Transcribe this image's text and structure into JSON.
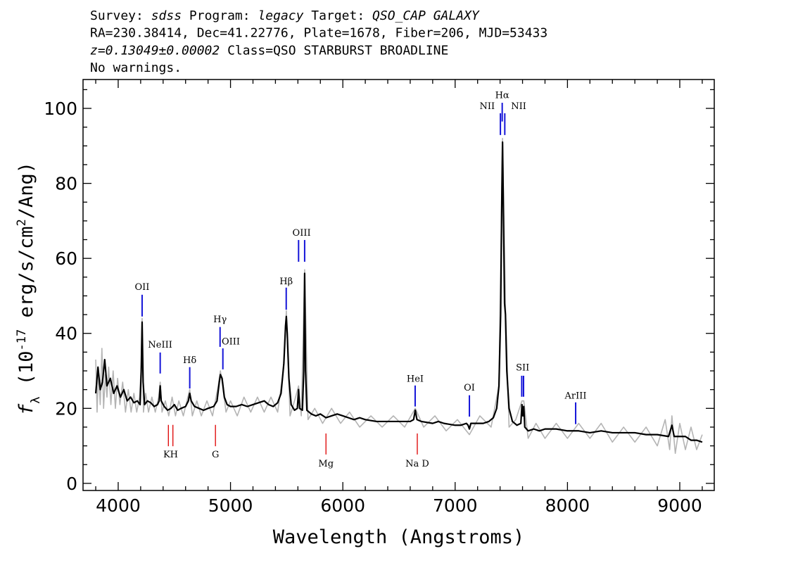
{
  "chart_data": {
    "type": "line",
    "header": [
      [
        {
          "text": "Survey: "
        },
        {
          "text": "sdss",
          "italic": true
        },
        {
          "text": " Program: "
        },
        {
          "text": "legacy",
          "italic": true
        },
        {
          "text": " Target: "
        },
        {
          "text": "QSO_CAP GALAXY",
          "italic": true
        }
      ],
      [
        {
          "text": "RA=230.38414, Dec=41.22776, Plate=1678, Fiber=206, MJD=53433"
        }
      ],
      [
        {
          "text": "z=0.13049±0.00002",
          "italic": true
        },
        {
          "text": " Class=QSO STARBURST BROADLINE"
        }
      ],
      [
        {
          "text": "No warnings."
        }
      ]
    ],
    "xlabel": "Wavelength (Angstroms)",
    "ylabel": [
      {
        "text": "f",
        "italic": true
      },
      {
        "text": "λ",
        "sub": true
      },
      {
        "text": " (10"
      },
      {
        "text": "-17",
        "sup": true
      },
      {
        "text": " erg/s/cm"
      },
      {
        "text": "2",
        "sup": true
      },
      {
        "text": "/Ang)"
      }
    ],
    "xlim": [
      3687,
      9307
    ],
    "ylim": [
      -1.9,
      107.7
    ],
    "xticks": [
      4000,
      5000,
      6000,
      7000,
      8000,
      9000
    ],
    "yticks": [
      0,
      20,
      40,
      60,
      80,
      100
    ],
    "xminorticks": [
      3800,
      4200,
      4400,
      4600,
      4800,
      5200,
      5400,
      5600,
      5800,
      6200,
      6400,
      6600,
      6800,
      7200,
      7400,
      7600,
      7800,
      8200,
      8400,
      8600,
      8800,
      9200
    ],
    "yminorticks": [
      5,
      10,
      15,
      25,
      30,
      35,
      45,
      50,
      55,
      65,
      70,
      75,
      85,
      90,
      95,
      105
    ],
    "series": [
      {
        "color": "#b4b4b4",
        "x": [
          3800,
          3812,
          3825,
          3840,
          3855,
          3870,
          3885,
          3900,
          3915,
          3935,
          3955,
          3975,
          3995,
          4015,
          4040,
          4065,
          4090,
          4115,
          4140,
          4165,
          4190,
          4205,
          4213,
          4225,
          4245,
          4270,
          4300,
          4330,
          4360,
          4374,
          4390,
          4420,
          4450,
          4480,
          4510,
          4540,
          4580,
          4620,
          4637,
          4660,
          4700,
          4740,
          4790,
          4840,
          4890,
          4910,
          4930,
          4960,
          5000,
          5060,
          5120,
          5180,
          5240,
          5300,
          5360,
          5420,
          5470,
          5497,
          5530,
          5570,
          5606,
          5630,
          5660,
          5690,
          5750,
          5820,
          5900,
          5980,
          6060,
          6150,
          6250,
          6350,
          6450,
          6550,
          6645,
          6720,
          6820,
          6920,
          7020,
          7127,
          7220,
          7320,
          7390,
          7422,
          7448,
          7480,
          7540,
          7595,
          7611,
          7650,
          7720,
          7800,
          7900,
          8000,
          8100,
          8200,
          8300,
          8400,
          8500,
          8600,
          8700,
          8800,
          8870,
          8910,
          8930,
          8960,
          9000,
          9050,
          9100,
          9150,
          9200
        ],
        "values": [
          33,
          19,
          30,
          21,
          36,
          20,
          29,
          23,
          31,
          21,
          30,
          20,
          28,
          21,
          27,
          19,
          25,
          19,
          24,
          19,
          23,
          31,
          44,
          19,
          24,
          19,
          23,
          19,
          23,
          27,
          19,
          22,
          18,
          23,
          18,
          22,
          18,
          23,
          25,
          18,
          22,
          18,
          22,
          18,
          26,
          30,
          26,
          19,
          22,
          18,
          23,
          19,
          23,
          19,
          23,
          19,
          30,
          46,
          18,
          22,
          26,
          18,
          57,
          17,
          20,
          16,
          20,
          16,
          19,
          15,
          18,
          15,
          18,
          15,
          20,
          15,
          18,
          14,
          17,
          13,
          18,
          15,
          26,
          92,
          47,
          15,
          17,
          22,
          22,
          12,
          16,
          12,
          16,
          12,
          16,
          12,
          16,
          11,
          15,
          11,
          15,
          10,
          17,
          9,
          18,
          8,
          16,
          9,
          15,
          9,
          13
        ]
      },
      {
        "color": "#000000",
        "x": [
          3800,
          3820,
          3840,
          3860,
          3880,
          3900,
          3930,
          3960,
          3990,
          4020,
          4050,
          4080,
          4110,
          4140,
          4170,
          4195,
          4205,
          4213,
          4222,
          4235,
          4260,
          4290,
          4320,
          4350,
          4365,
          4374,
          4383,
          4410,
          4440,
          4470,
          4500,
          4530,
          4560,
          4600,
          4625,
          4637,
          4650,
          4680,
          4720,
          4760,
          4800,
          4850,
          4880,
          4900,
          4910,
          4925,
          4945,
          4970,
          5000,
          5050,
          5100,
          5150,
          5200,
          5250,
          5300,
          5340,
          5380,
          5420,
          5450,
          5475,
          5490,
          5497,
          5505,
          5520,
          5540,
          5570,
          5595,
          5606,
          5615,
          5640,
          5652,
          5660,
          5668,
          5680,
          5720,
          5760,
          5800,
          5850,
          5900,
          5950,
          6000,
          6050,
          6100,
          6150,
          6200,
          6300,
          6400,
          6500,
          6600,
          6630,
          6645,
          6660,
          6700,
          6800,
          6850,
          6900,
          7000,
          7050,
          7100,
          7115,
          7127,
          7140,
          7200,
          7250,
          7300,
          7340,
          7370,
          7390,
          7405,
          7415,
          7422,
          7430,
          7440,
          7448,
          7460,
          7480,
          7510,
          7550,
          7585,
          7595,
          7603,
          7611,
          7620,
          7650,
          7700,
          7750,
          7800,
          7900,
          8000,
          8100,
          8200,
          8300,
          8400,
          8500,
          8600,
          8700,
          8800,
          8900,
          8930,
          8950,
          9000,
          9050,
          9100,
          9150,
          9200
        ],
        "values": [
          24,
          31,
          25,
          27,
          33,
          26,
          28,
          24,
          26,
          23,
          25,
          22,
          23,
          21.5,
          22,
          21,
          30,
          43,
          27,
          21,
          22,
          21.5,
          20.5,
          21,
          22,
          26,
          22,
          20.5,
          19.5,
          20,
          21,
          19.5,
          20,
          20.5,
          22,
          24,
          22,
          20.5,
          20,
          19.5,
          20,
          20.5,
          22,
          27,
          29,
          28,
          23,
          21,
          20.5,
          20.5,
          21,
          20.5,
          21,
          21.5,
          22,
          21,
          20.5,
          21.5,
          24,
          32,
          42,
          44.5,
          40,
          28,
          21,
          19.5,
          20,
          25,
          20,
          19.5,
          30,
          56,
          30,
          19.5,
          18.5,
          18,
          18.5,
          17.5,
          18,
          18.5,
          18,
          17.5,
          17,
          17.5,
          17,
          16.5,
          16.5,
          16.5,
          16.5,
          17,
          19.5,
          17,
          16.5,
          16,
          16.5,
          16,
          15.5,
          15.5,
          16,
          15.5,
          14.5,
          16,
          16,
          16,
          16.5,
          17.5,
          20,
          26,
          45,
          75,
          91,
          72,
          48,
          45,
          30,
          20,
          16.5,
          15.5,
          16,
          21,
          18,
          20.5,
          15,
          14,
          14.5,
          14,
          14.5,
          14.5,
          14,
          14,
          13.5,
          14,
          13.5,
          13.5,
          13.5,
          13,
          13,
          12.5,
          15.5,
          12.5,
          12.5,
          12.5,
          11.5,
          11.5,
          11
        ]
      }
    ],
    "emission_lines": {
      "color": "#1414d8",
      "lines": [
        {
          "label": "OII",
          "label_y": 52.5,
          "wavelengths": [
            4213
          ],
          "top": 50.3,
          "bottom": 44.5
        },
        {
          "label": "NeIII",
          "label_y": 37.1,
          "wavelengths": [
            4374
          ],
          "top": 34.9,
          "bottom": 29.3
        },
        {
          "label": "Hδ",
          "label_y": 33.0,
          "wavelengths": [
            4637
          ],
          "top": 31.0,
          "bottom": 25.3
        },
        {
          "label": "Hγ",
          "label_y": 43.9,
          "wavelengths": [
            4907
          ],
          "top": 41.7,
          "bottom": 36.4
        },
        {
          "label": "OIII",
          "label_x": 5003,
          "label_y": 38.0,
          "wavelengths": [
            4932
          ],
          "top": 36.0,
          "bottom": 30.4
        },
        {
          "label": "Hβ",
          "label_y": 54.0,
          "wavelengths": [
            5496
          ],
          "top": 52.2,
          "bottom": 46.3
        },
        {
          "label": "OIII",
          "label_y": 67.0,
          "wavelengths": [
            5606,
            5660
          ],
          "top": 64.9,
          "bottom": 59.1
        },
        {
          "label": "NII",
          "label_x": 7285,
          "label_y": 100.8,
          "wavelengths": [
            7403
          ],
          "top": 98.7,
          "bottom": 92.9
        },
        {
          "label": "Hα",
          "label_y": 103.7,
          "wavelengths": [
            7419
          ],
          "top": 101.5,
          "bottom": 96.5
        },
        {
          "label": "NII",
          "label_x": 7566,
          "label_y": 100.8,
          "wavelengths": [
            7442
          ],
          "top": 98.7,
          "bottom": 92.9
        },
        {
          "label": "HeI",
          "label_y": 28.0,
          "wavelengths": [
            6644
          ],
          "top": 26.1,
          "bottom": 20.5
        },
        {
          "label": "OI",
          "label_y": 25.7,
          "wavelengths": [
            7127
          ],
          "top": 23.5,
          "bottom": 17.8
        },
        {
          "label": "SII",
          "label_y": 31.0,
          "wavelengths": [
            7593,
            7609
          ],
          "top": 28.7,
          "bottom": 23.1
        },
        {
          "label": "ArIII",
          "label_y": 23.5,
          "wavelengths": [
            8073
          ],
          "top": 21.6,
          "bottom": 15.8
        }
      ]
    },
    "absorption_lines": {
      "color": "#e01010",
      "lines": [
        {
          "label": "KH",
          "label_y": 7.9,
          "wavelengths": [
            4447,
            4487
          ],
          "top": 15.6,
          "bottom": 9.9
        },
        {
          "label": "G",
          "label_y": 7.9,
          "wavelengths": [
            4866
          ],
          "top": 15.6,
          "bottom": 9.9
        },
        {
          "label": "Mg",
          "label_y": 5.4,
          "wavelengths": [
            5850
          ],
          "top": 13.3,
          "bottom": 7.7
        },
        {
          "label": "Na D",
          "label_y": 5.4,
          "wavelengths": [
            6663
          ],
          "top": 13.3,
          "bottom": 7.7
        }
      ]
    }
  }
}
